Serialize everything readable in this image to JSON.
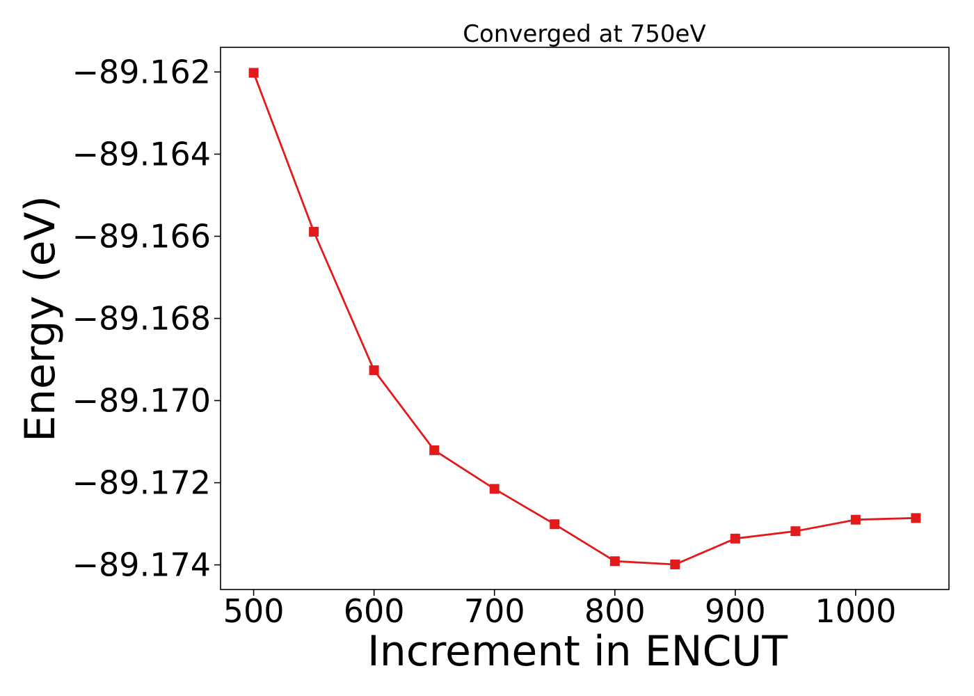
{
  "chart_data": {
    "type": "line",
    "title": "Converged at 750eV",
    "xlabel": "Increment in ENCUT",
    "ylabel": "Energy (eV)",
    "xlim": [
      472.5,
      1077.5
    ],
    "ylim": [
      -89.1746,
      -89.1614
    ],
    "xticks": [
      500,
      600,
      700,
      800,
      900,
      1000
    ],
    "xtick_labels": [
      "500",
      "600",
      "700",
      "800",
      "900",
      "1000"
    ],
    "yticks": [
      -89.162,
      -89.164,
      -89.166,
      -89.168,
      -89.17,
      -89.172,
      -89.174
    ],
    "ytick_labels": [
      "−89.162",
      "−89.164",
      "−89.166",
      "−89.168",
      "−89.170",
      "−89.172",
      "−89.174"
    ],
    "grid": false,
    "marker": "square",
    "series_color": "#e31a1c",
    "series": [
      {
        "x": [
          500,
          550,
          600,
          650,
          700,
          750,
          800,
          850,
          900,
          950,
          1000,
          1050
        ],
        "y": [
          -89.16202,
          -89.16589,
          -89.16926,
          -89.17121,
          -89.17215,
          -89.17301,
          -89.17391,
          -89.17399,
          -89.17336,
          -89.17318,
          -89.1729,
          -89.17286
        ]
      }
    ]
  }
}
